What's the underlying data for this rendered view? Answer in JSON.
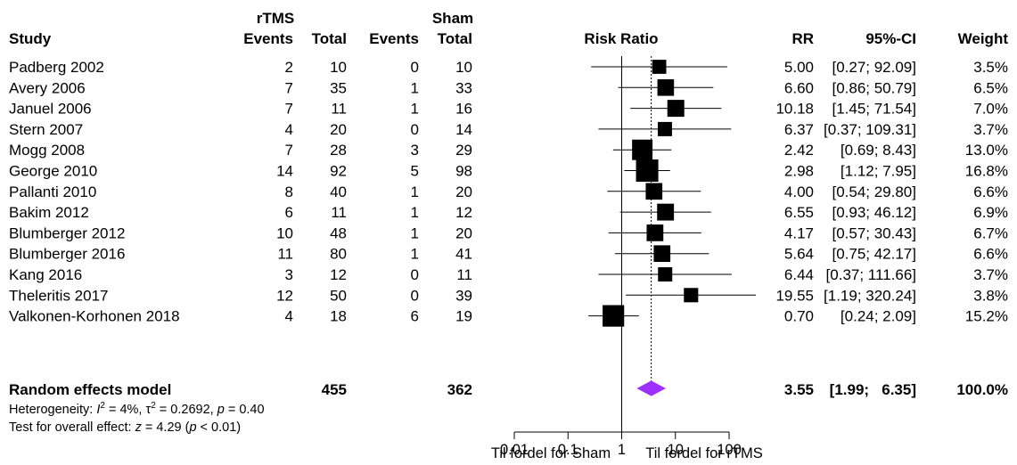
{
  "chart_data": {
    "type": "forest",
    "scale": "log",
    "xlim": [
      0.01,
      100
    ],
    "reference_line": 1,
    "pooled_line": 3.55,
    "headers": {
      "group1": "rTMS",
      "group2": "Sham",
      "study": "Study",
      "events": "Events",
      "total": "Total",
      "plot": "Risk Ratio",
      "rr": "RR",
      "ci": "95%-CI",
      "weight": "Weight"
    },
    "studies": [
      {
        "study": "Padberg 2002",
        "e1": "2",
        "n1": "10",
        "e2": "0",
        "n2": "10",
        "rr": 5.0,
        "lo": 0.27,
        "hi": 92.09,
        "w": 3.5,
        "rr_text": "5.00",
        "ci_text": "[0.27; 92.09]",
        "w_text": "3.5%"
      },
      {
        "study": "Avery 2006",
        "e1": "7",
        "n1": "35",
        "e2": "1",
        "n2": "33",
        "rr": 6.6,
        "lo": 0.86,
        "hi": 50.79,
        "w": 6.5,
        "rr_text": "6.60",
        "ci_text": "[0.86; 50.79]",
        "w_text": "6.5%"
      },
      {
        "study": "Januel 2006",
        "e1": "7",
        "n1": "11",
        "e2": "1",
        "n2": "16",
        "rr": 10.18,
        "lo": 1.45,
        "hi": 71.54,
        "w": 7.0,
        "rr_text": "10.18",
        "ci_text": "[1.45; 71.54]",
        "w_text": "7.0%"
      },
      {
        "study": "Stern 2007",
        "e1": "4",
        "n1": "20",
        "e2": "0",
        "n2": "14",
        "rr": 6.37,
        "lo": 0.37,
        "hi": 109.31,
        "w": 3.7,
        "rr_text": "6.37",
        "ci_text": "[0.37; 109.31]",
        "w_text": "3.7%"
      },
      {
        "study": "Mogg 2008",
        "e1": "7",
        "n1": "28",
        "e2": "3",
        "n2": "29",
        "rr": 2.42,
        "lo": 0.69,
        "hi": 8.43,
        "w": 13.0,
        "rr_text": "2.42",
        "ci_text": "[0.69;   8.43]",
        "w_text": "13.0%"
      },
      {
        "study": "George 2010",
        "e1": "14",
        "n1": "92",
        "e2": "5",
        "n2": "98",
        "rr": 2.98,
        "lo": 1.12,
        "hi": 7.95,
        "w": 16.8,
        "rr_text": "2.98",
        "ci_text": "[1.12;   7.95]",
        "w_text": "16.8%"
      },
      {
        "study": "Pallanti 2010",
        "e1": "8",
        "n1": "40",
        "e2": "1",
        "n2": "20",
        "rr": 4.0,
        "lo": 0.54,
        "hi": 29.8,
        "w": 6.6,
        "rr_text": "4.00",
        "ci_text": "[0.54; 29.80]",
        "w_text": "6.6%"
      },
      {
        "study": "Bakim 2012",
        "e1": "6",
        "n1": "11",
        "e2": "1",
        "n2": "12",
        "rr": 6.55,
        "lo": 0.93,
        "hi": 46.12,
        "w": 6.9,
        "rr_text": "6.55",
        "ci_text": "[0.93; 46.12]",
        "w_text": "6.9%"
      },
      {
        "study": "Blumberger 2012",
        "e1": "10",
        "n1": "48",
        "e2": "1",
        "n2": "20",
        "rr": 4.17,
        "lo": 0.57,
        "hi": 30.43,
        "w": 6.7,
        "rr_text": "4.17",
        "ci_text": "[0.57; 30.43]",
        "w_text": "6.7%"
      },
      {
        "study": "Blumberger 2016",
        "e1": "11",
        "n1": "80",
        "e2": "1",
        "n2": "41",
        "rr": 5.64,
        "lo": 0.75,
        "hi": 42.17,
        "w": 6.6,
        "rr_text": "5.64",
        "ci_text": "[0.75; 42.17]",
        "w_text": "6.6%"
      },
      {
        "study": "Kang 2016",
        "e1": "3",
        "n1": "12",
        "e2": "0",
        "n2": "11",
        "rr": 6.44,
        "lo": 0.37,
        "hi": 111.66,
        "w": 3.7,
        "rr_text": "6.44",
        "ci_text": "[0.37; 111.66]",
        "w_text": "3.7%"
      },
      {
        "study": "Theleritis 2017",
        "e1": "12",
        "n1": "50",
        "e2": "0",
        "n2": "39",
        "rr": 19.55,
        "lo": 1.19,
        "hi": 320.24,
        "w": 3.8,
        "rr_text": "19.55",
        "ci_text": "[1.19; 320.24]",
        "w_text": "3.8%"
      },
      {
        "study": "Valkonen-Korhonen 2018",
        "e1": "4",
        "n1": "18",
        "e2": "6",
        "n2": "19",
        "rr": 0.7,
        "lo": 0.24,
        "hi": 2.09,
        "w": 15.2,
        "rr_text": "0.70",
        "ci_text": "[0.24;   2.09]",
        "w_text": "15.2%"
      }
    ],
    "pooled": {
      "label": "Random effects model",
      "n1": "455",
      "n2": "362",
      "rr": 3.55,
      "lo": 1.99,
      "hi": 6.35,
      "rr_text": "3.55",
      "ci_text": "[1.99;   6.35]",
      "w_text": "100.0%",
      "color": "#9b30ff"
    },
    "heterogeneity": {
      "prefix": "Heterogeneity: ",
      "i2_sym": "I",
      "i2_val": " = 4%, ",
      "tau_sym": "τ",
      "tau_val": " = 0.2692, ",
      "p_sym": "p",
      "p_val": " = 0.40"
    },
    "overall_test": {
      "prefix": "Test for overall effect: ",
      "z_sym": "z",
      "z_val": " = 4.29 (",
      "p_sym": "p",
      "p_val": " < 0.01)"
    },
    "ticks": [
      {
        "value": 0.01,
        "label": "0.01"
      },
      {
        "value": 0.1,
        "label": "0.1"
      },
      {
        "value": 1,
        "label": "1"
      },
      {
        "value": 10,
        "label": "10"
      },
      {
        "value": 100,
        "label": "100"
      }
    ],
    "favours_left": "Til fordel for Sham",
    "favours_right": "Til fordel for rTMS"
  }
}
